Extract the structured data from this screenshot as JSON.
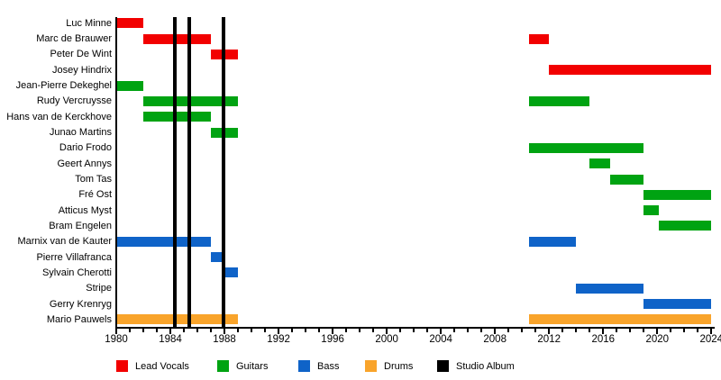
{
  "chart_data": {
    "type": "gantt-timeline",
    "description": "Band members timeline chart: colored bars show each member's tenure per instrument role; vertical black lines mark studio album releases.",
    "x_axis": {
      "min": 1980,
      "max": 2024,
      "major_tick_step": 4,
      "minor_tick_step": 1,
      "major_tick_labels": [
        "1980",
        "1984",
        "1988",
        "1992",
        "1996",
        "2000",
        "2004",
        "2008",
        "2012",
        "2016",
        "2020",
        "2024"
      ]
    },
    "colors": {
      "vocals": "#f20000",
      "guitars": "#00a312",
      "bass": "#0f63c8",
      "drums": "#f9a42b",
      "album": "#000000"
    },
    "rows": [
      {
        "name": "Luc Minne",
        "segments": [
          {
            "role": "vocals",
            "start": 1980,
            "end": 1982
          }
        ]
      },
      {
        "name": "Marc de Brauwer",
        "segments": [
          {
            "role": "vocals",
            "start": 1982,
            "end": 1987
          },
          {
            "role": "vocals",
            "start": 2010.5,
            "end": 2012
          }
        ]
      },
      {
        "name": "Peter De Wint",
        "segments": [
          {
            "role": "vocals",
            "start": 1987,
            "end": 1989
          }
        ]
      },
      {
        "name": "Josey Hindrix",
        "segments": [
          {
            "role": "vocals",
            "start": 2012,
            "end": 2024
          }
        ]
      },
      {
        "name": "Jean-Pierre Dekeghel",
        "segments": [
          {
            "role": "guitars",
            "start": 1980,
            "end": 1982
          }
        ]
      },
      {
        "name": "Rudy Vercruysse",
        "segments": [
          {
            "role": "guitars",
            "start": 1982,
            "end": 1989
          },
          {
            "role": "guitars",
            "start": 2010.5,
            "end": 2015
          }
        ]
      },
      {
        "name": "Hans van de Kerckhove",
        "segments": [
          {
            "role": "guitars",
            "start": 1982,
            "end": 1987
          }
        ]
      },
      {
        "name": "Junao Martins",
        "segments": [
          {
            "role": "guitars",
            "start": 1987,
            "end": 1989
          }
        ]
      },
      {
        "name": "Dario Frodo",
        "segments": [
          {
            "role": "guitars",
            "start": 2010.5,
            "end": 2019
          }
        ]
      },
      {
        "name": "Geert Annys",
        "segments": [
          {
            "role": "guitars",
            "start": 2015,
            "end": 2016.5
          }
        ]
      },
      {
        "name": "Tom Tas",
        "segments": [
          {
            "role": "guitars",
            "start": 2016.5,
            "end": 2019
          }
        ]
      },
      {
        "name": "Fré Ost",
        "segments": [
          {
            "role": "guitars",
            "start": 2019,
            "end": 2024
          }
        ]
      },
      {
        "name": "Atticus Myst",
        "segments": [
          {
            "role": "guitars",
            "start": 2019,
            "end": 2020.1
          }
        ]
      },
      {
        "name": "Bram Engelen",
        "segments": [
          {
            "role": "guitars",
            "start": 2020.1,
            "end": 2024
          }
        ]
      },
      {
        "name": "Marnix van de Kauter",
        "segments": [
          {
            "role": "bass",
            "start": 1980,
            "end": 1987
          },
          {
            "role": "bass",
            "start": 2010.5,
            "end": 2014
          }
        ]
      },
      {
        "name": "Pierre Villafranca",
        "segments": [
          {
            "role": "bass",
            "start": 1987,
            "end": 1988
          }
        ]
      },
      {
        "name": "Sylvain Cherotti",
        "segments": [
          {
            "role": "bass",
            "start": 1988,
            "end": 1989
          }
        ]
      },
      {
        "name": "Stripe",
        "segments": [
          {
            "role": "bass",
            "start": 2014,
            "end": 2019
          }
        ]
      },
      {
        "name": "Gerry Krenryg",
        "segments": [
          {
            "role": "bass",
            "start": 2019,
            "end": 2024
          }
        ]
      },
      {
        "name": "Mario Pauwels",
        "segments": [
          {
            "role": "drums",
            "start": 1980,
            "end": 1989
          },
          {
            "role": "drums",
            "start": 2010.5,
            "end": 2024
          }
        ]
      }
    ],
    "album_lines": [
      1984.3,
      1985.4,
      1987.9
    ],
    "legend": [
      {
        "label": "Lead Vocals",
        "color_key": "vocals"
      },
      {
        "label": "Guitars",
        "color_key": "guitars"
      },
      {
        "label": "Bass",
        "color_key": "bass"
      },
      {
        "label": "Drums",
        "color_key": "drums"
      },
      {
        "label": "Studio Album",
        "color_key": "album"
      }
    ],
    "legend_position": "bottom",
    "grid": false
  }
}
